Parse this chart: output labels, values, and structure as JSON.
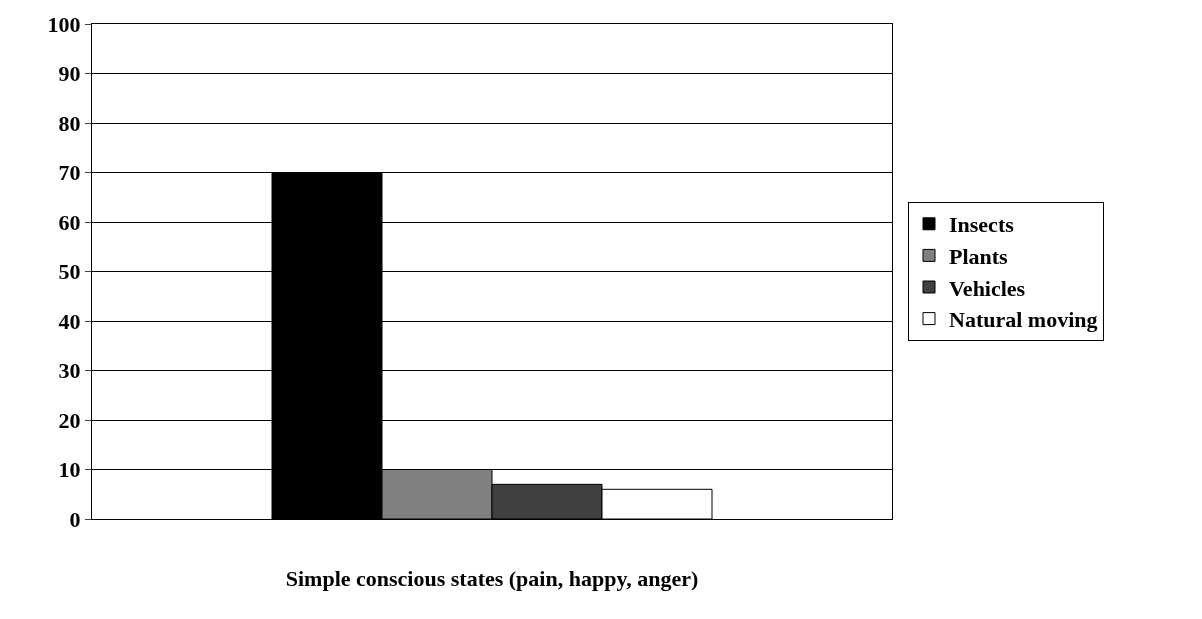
{
  "chart_data": {
    "type": "bar",
    "categories": [
      "Simple conscious states (pain, happy, anger)"
    ],
    "series": [
      {
        "name": "Insects",
        "color": "#000000",
        "values": [
          70
        ]
      },
      {
        "name": "Plants",
        "color": "#808080",
        "values": [
          10
        ]
      },
      {
        "name": "Vehicles",
        "color": "#404040",
        "values": [
          7
        ]
      },
      {
        "name": "Natural moving",
        "color": "#ffffff",
        "values": [
          6
        ]
      }
    ],
    "ylim": [
      0,
      100
    ],
    "yticks": [
      0,
      10,
      20,
      30,
      40,
      50,
      60,
      70,
      80,
      90,
      100
    ],
    "grid": "y",
    "legend": "right"
  }
}
